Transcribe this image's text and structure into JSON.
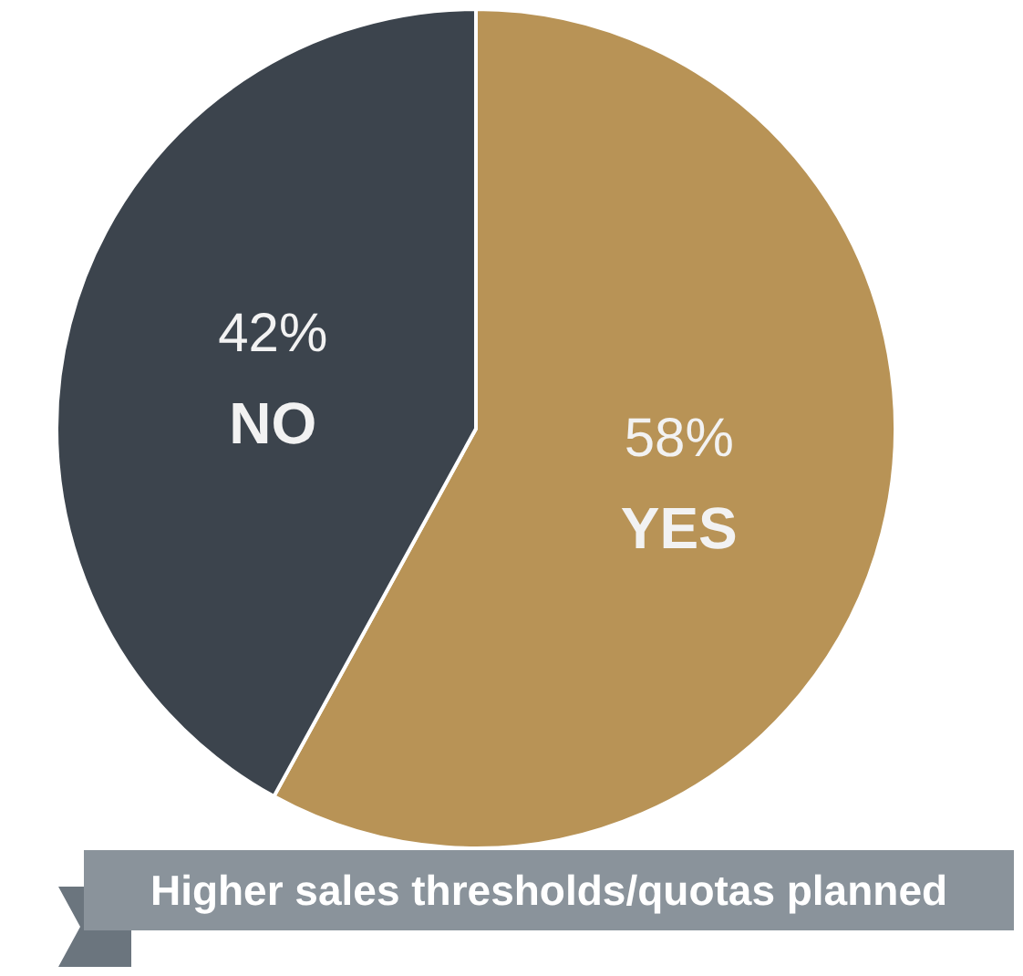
{
  "chart_data": {
    "type": "pie",
    "title": "Higher sales thresholds/quotas planned",
    "categories": [
      "YES",
      "NO"
    ],
    "values": [
      58,
      42
    ],
    "colors": [
      "#b89356",
      "#3c444d"
    ],
    "value_labels": [
      "58%",
      "42%"
    ],
    "legend": false
  }
}
